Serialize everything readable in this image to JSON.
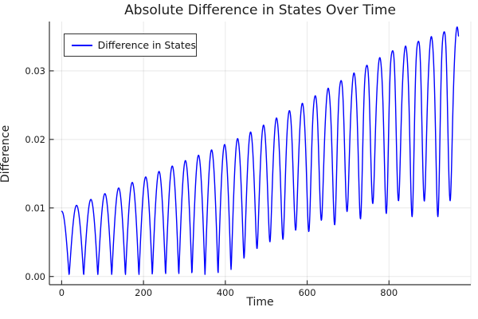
{
  "chart": {
    "title": "Absolute Difference in States Over Time",
    "xlabel": "Time",
    "ylabel": "Difference",
    "legend": {
      "label": "Difference in States",
      "position": "top-left",
      "border_color": "#333333"
    },
    "colors": {
      "line": "#0000ff",
      "axis": "#333333",
      "grid": "rgba(0,0,0,0.09)",
      "frame_faint": "#e8e8e8",
      "text": "#1a1a1a",
      "background": "#ffffff"
    },
    "chart_data": {
      "type": "line",
      "title": "Absolute Difference in States Over Time",
      "xlabel": "Time",
      "ylabel": "Difference",
      "xlim": [
        -30,
        1000
      ],
      "ylim": [
        -0.0012,
        0.0372
      ],
      "xticks": [
        0,
        200,
        400,
        600,
        800
      ],
      "xtick_labels": [
        "0",
        "200",
        "400",
        "600",
        "800"
      ],
      "yticks": [
        0,
        0.01,
        0.02,
        0.03
      ],
      "ytick_labels": [
        "0.00",
        "0.01",
        "0.02",
        "0.03"
      ],
      "grid": true,
      "legend_position": "top-left",
      "series": [
        {
          "name": "Difference in States",
          "color": "#0000ff",
          "stroke_width": 1.4,
          "t_start": 0,
          "t_end": 970,
          "start_value": 0.0095,
          "n_oscillations": 29,
          "behavior": "rectified oscillation |difference| whose minima touch 0 until t~420, then valleys lift and waveform becomes jagged with double humps while peak envelope grows roughly linearly",
          "peak_envelope": [
            [
              0,
              0.0095
            ],
            [
              200,
              0.0135
            ],
            [
              475,
              0.022
            ],
            [
              630,
              0.027
            ],
            [
              950,
              0.036
            ]
          ],
          "valley_floor": [
            [
              0,
              0.0
            ],
            [
              420,
              0.0
            ],
            [
              520,
              0.005
            ],
            [
              650,
              0.009
            ],
            [
              820,
              0.013
            ],
            [
              950,
              0.014
            ]
          ],
          "generator": {
            "dt": 0.75,
            "period_base": 31.5,
            "period_extra": 5.2,
            "period_tau": 140,
            "amp0": 0.0095,
            "amp_slope": 2.45e-05,
            "floor_t0": 400,
            "floor_span": 400,
            "floor_max": 0.015,
            "floor_pow": 0.8,
            "mess_t0": 480,
            "mess_span": 350,
            "h2_amp": 0.0052,
            "h2_phase": 2.0,
            "h3_amp": 0.0028,
            "h3_phase": -1.0,
            "y_clip_min": 0.0003
          }
        }
      ]
    }
  }
}
